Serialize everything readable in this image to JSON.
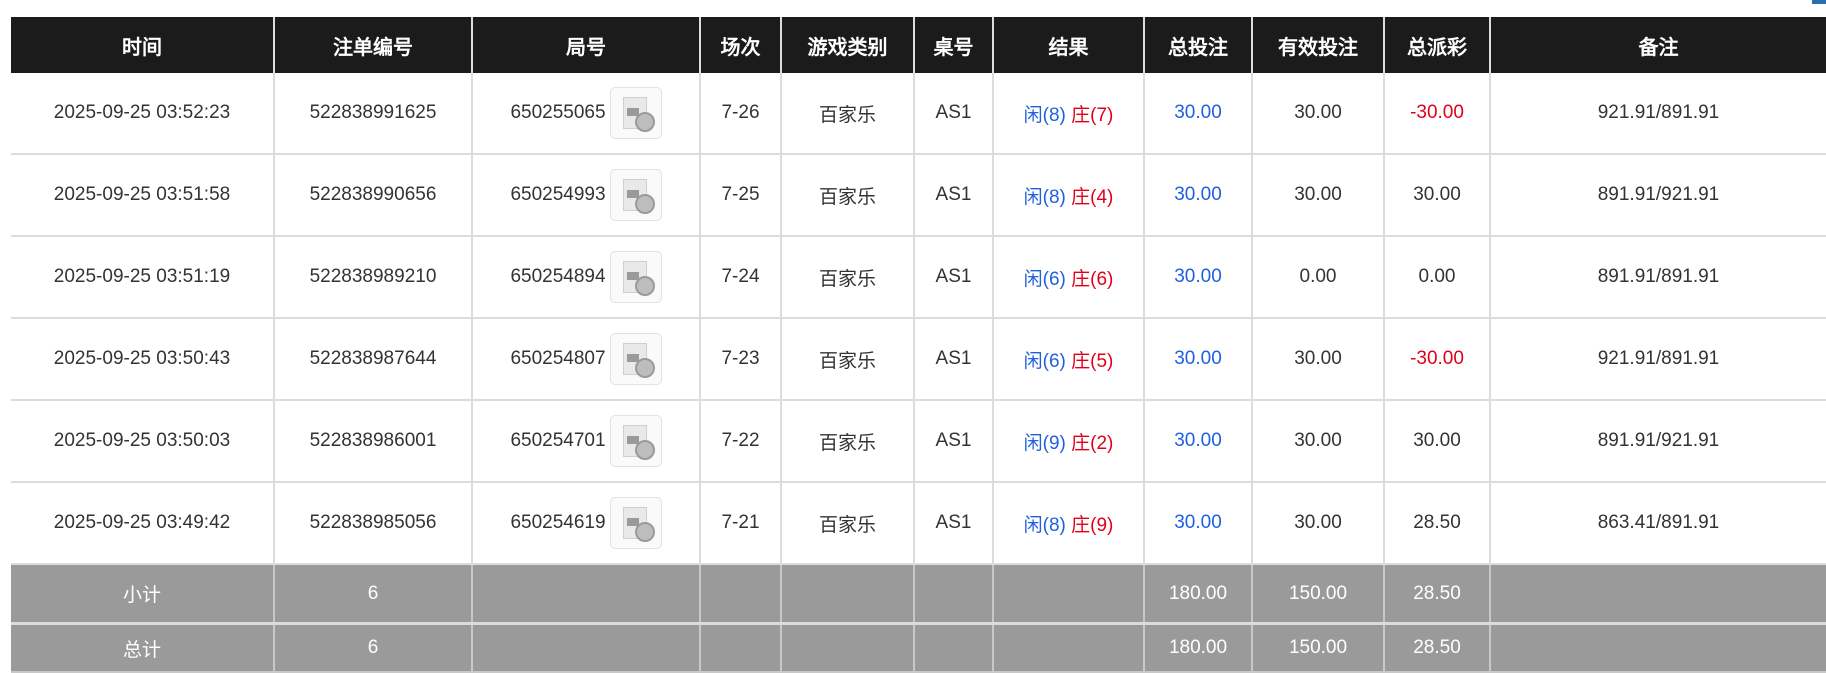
{
  "colors": {
    "header_bg": "#1b1b1b",
    "bet_blue": "#1f5fe0",
    "loss_red": "#e0001b",
    "summary_bg": "#9a9a9a"
  },
  "headers": [
    "时间",
    "注单编号",
    "局号",
    "场次",
    "游戏类别",
    "桌号",
    "结果",
    "总投注",
    "有效投注",
    "总派彩",
    "备注"
  ],
  "rows": [
    {
      "time": "2025-09-25 03:52:23",
      "bet_id": "522838991625",
      "round": "650255065",
      "shoe": "7-26",
      "game": "百家乐",
      "table": "AS1",
      "player": "闲(8)",
      "banker": "庄(7)",
      "total_bet": "30.00",
      "valid_bet": "30.00",
      "payout": "-30.00",
      "payout_neg": true,
      "note": "921.91/891.91"
    },
    {
      "time": "2025-09-25 03:51:58",
      "bet_id": "522838990656",
      "round": "650254993",
      "shoe": "7-25",
      "game": "百家乐",
      "table": "AS1",
      "player": "闲(8)",
      "banker": "庄(4)",
      "total_bet": "30.00",
      "valid_bet": "30.00",
      "payout": "30.00",
      "payout_neg": false,
      "note": "891.91/921.91"
    },
    {
      "time": "2025-09-25 03:51:19",
      "bet_id": "522838989210",
      "round": "650254894",
      "shoe": "7-24",
      "game": "百家乐",
      "table": "AS1",
      "player": "闲(6)",
      "banker": "庄(6)",
      "total_bet": "30.00",
      "valid_bet": "0.00",
      "payout": "0.00",
      "payout_neg": false,
      "note": "891.91/891.91"
    },
    {
      "time": "2025-09-25 03:50:43",
      "bet_id": "522838987644",
      "round": "650254807",
      "shoe": "7-23",
      "game": "百家乐",
      "table": "AS1",
      "player": "闲(6)",
      "banker": "庄(5)",
      "total_bet": "30.00",
      "valid_bet": "30.00",
      "payout": "-30.00",
      "payout_neg": true,
      "note": "921.91/891.91"
    },
    {
      "time": "2025-09-25 03:50:03",
      "bet_id": "522838986001",
      "round": "650254701",
      "shoe": "7-22",
      "game": "百家乐",
      "table": "AS1",
      "player": "闲(9)",
      "banker": "庄(2)",
      "total_bet": "30.00",
      "valid_bet": "30.00",
      "payout": "30.00",
      "payout_neg": false,
      "note": "891.91/921.91"
    },
    {
      "time": "2025-09-25 03:49:42",
      "bet_id": "522838985056",
      "round": "650254619",
      "shoe": "7-21",
      "game": "百家乐",
      "table": "AS1",
      "player": "闲(8)",
      "banker": "庄(9)",
      "total_bet": "30.00",
      "valid_bet": "30.00",
      "payout": "28.50",
      "payout_neg": false,
      "note": "863.41/891.91"
    }
  ],
  "subtotal": {
    "label": "小计",
    "count": "6",
    "total_bet": "180.00",
    "valid_bet": "150.00",
    "payout": "28.50"
  },
  "total": {
    "label": "总计",
    "count": "6",
    "total_bet": "180.00",
    "valid_bet": "150.00",
    "payout": "28.50"
  },
  "icons": {
    "replay": "video-file-icon"
  }
}
